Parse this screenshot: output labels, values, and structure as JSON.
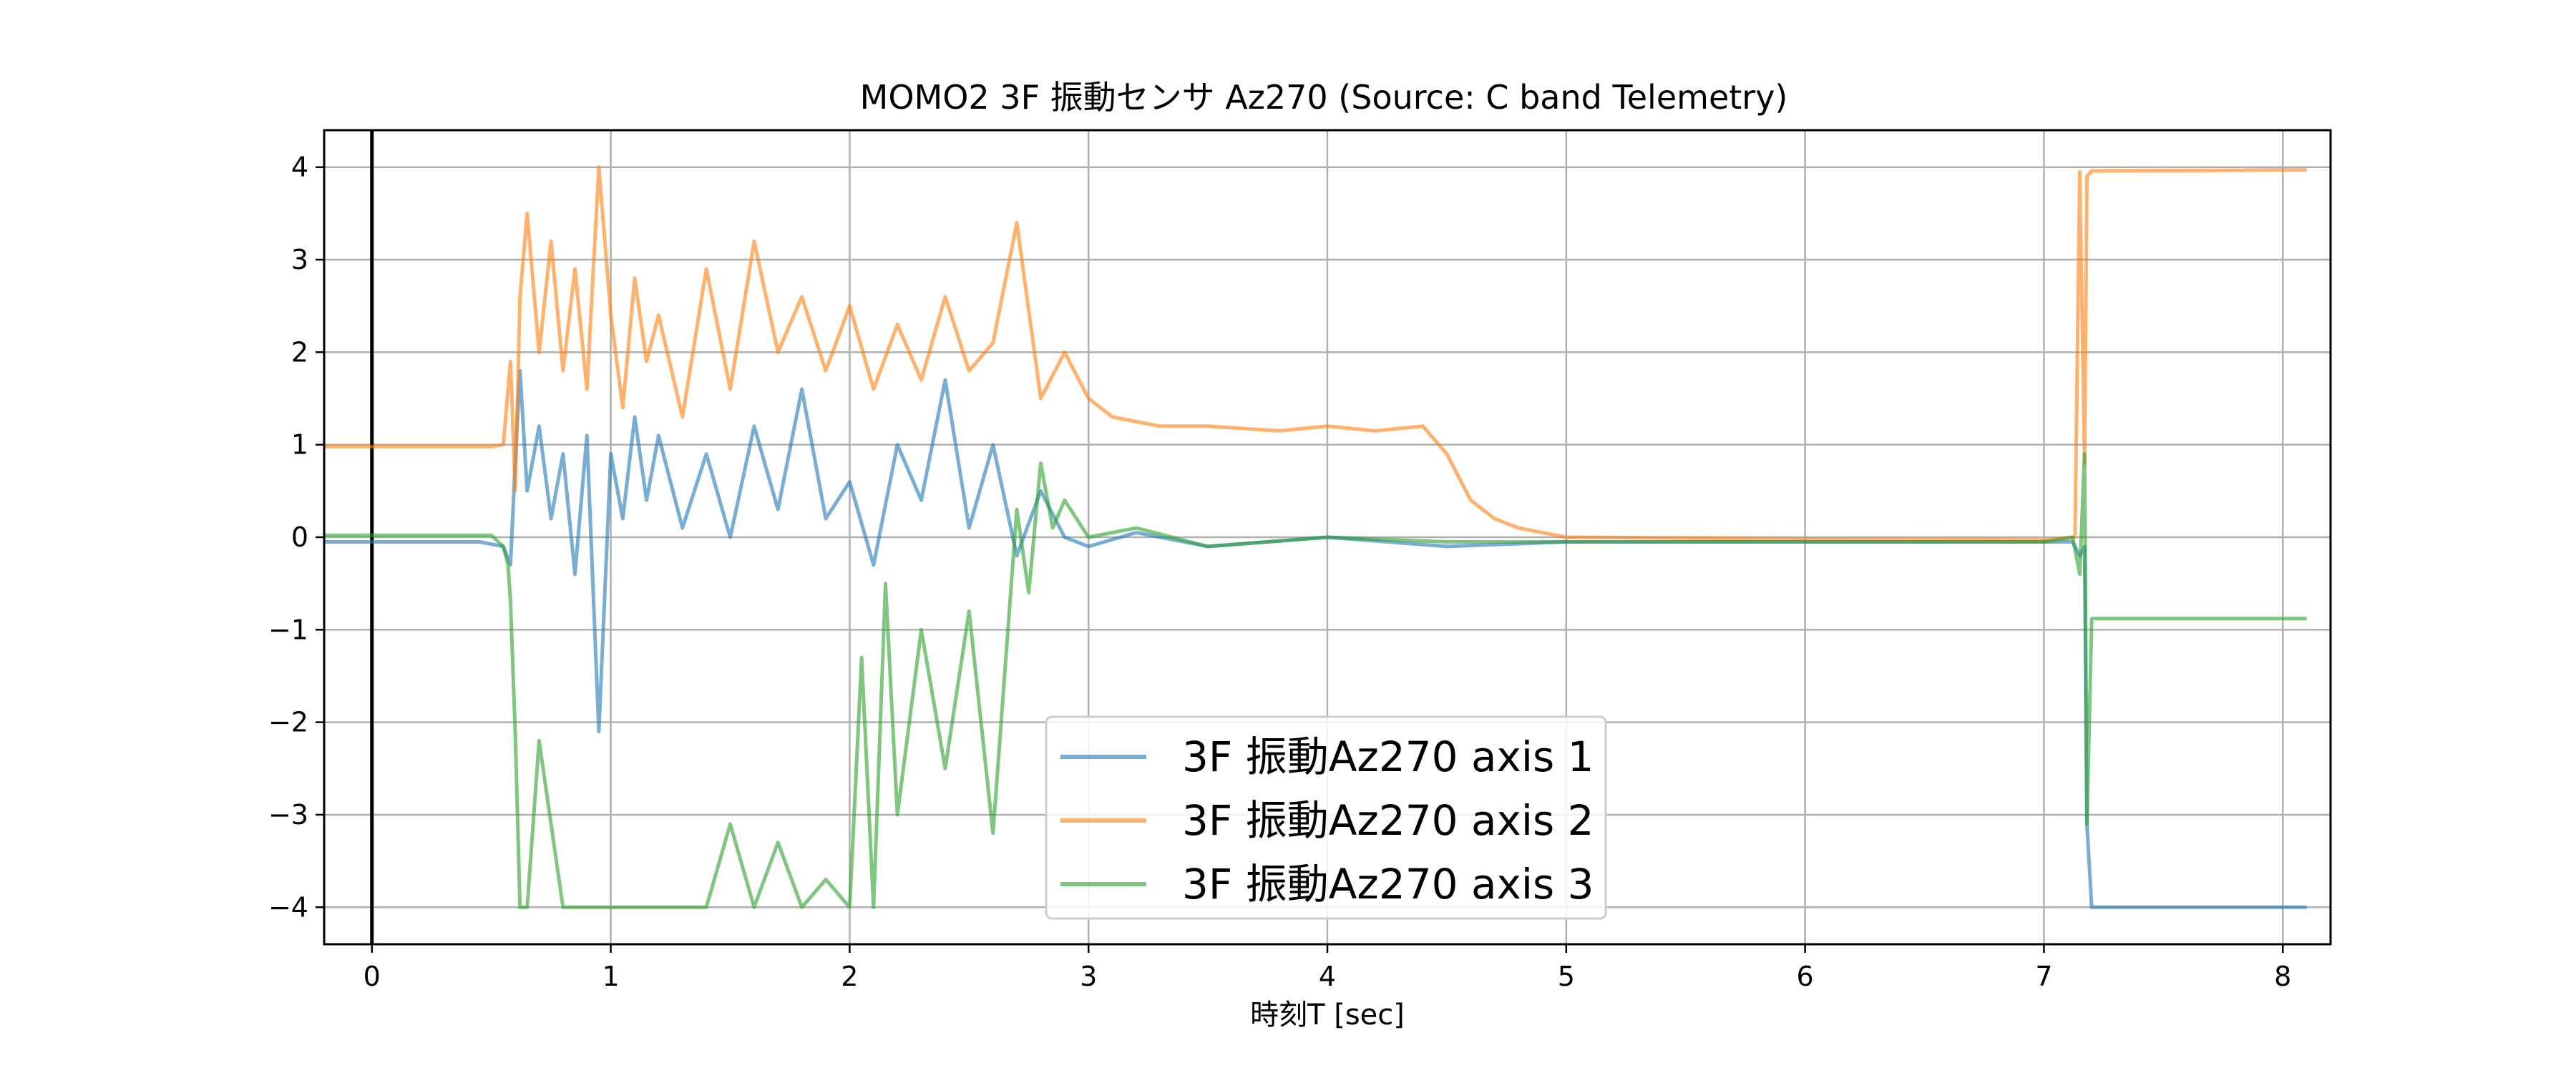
{
  "chart_data": {
    "type": "line",
    "title": "MOMO2 3F 振動センサ Az270 (Source: C band Telemetry)",
    "xlabel": "時刻T [sec]",
    "ylabel": "",
    "xlim": [
      -0.2,
      8.2
    ],
    "ylim": [
      -4.4,
      4.4
    ],
    "xticks": [
      0,
      1,
      2,
      3,
      4,
      5,
      6,
      7,
      8
    ],
    "yticks": [
      -4,
      -3,
      -2,
      -1,
      0,
      1,
      2,
      3,
      4
    ],
    "xtick_labels": [
      "0",
      "1",
      "2",
      "3",
      "4",
      "5",
      "6",
      "7",
      "8"
    ],
    "ytick_labels": [
      "−4",
      "−3",
      "−2",
      "−1",
      "0",
      "1",
      "2",
      "3",
      "4"
    ],
    "grid": true,
    "legend_position": "lower-center",
    "reference_line": {
      "x": 0,
      "color": "#000000"
    },
    "series": [
      {
        "name": "3F 振動Az270 axis 1",
        "color": "#1f77b4",
        "x": [
          -0.2,
          0.45,
          0.55,
          0.58,
          0.6,
          0.62,
          0.65,
          0.7,
          0.75,
          0.8,
          0.85,
          0.9,
          0.95,
          1.0,
          1.05,
          1.1,
          1.15,
          1.2,
          1.3,
          1.4,
          1.5,
          1.6,
          1.7,
          1.8,
          1.9,
          2.0,
          2.1,
          2.2,
          2.3,
          2.4,
          2.5,
          2.6,
          2.7,
          2.8,
          2.9,
          3.0,
          3.2,
          3.5,
          4.0,
          4.5,
          5.0,
          6.0,
          7.0,
          7.12,
          7.15,
          7.17,
          7.18,
          7.2,
          8.1
        ],
        "y": [
          -0.05,
          -0.05,
          -0.1,
          -0.3,
          0.8,
          1.8,
          0.5,
          1.2,
          0.2,
          0.9,
          -0.4,
          1.1,
          -2.1,
          0.9,
          0.2,
          1.3,
          0.4,
          1.1,
          0.1,
          0.9,
          0.0,
          1.2,
          0.3,
          1.6,
          0.2,
          0.6,
          -0.3,
          1.0,
          0.4,
          1.7,
          0.1,
          1.0,
          -0.2,
          0.5,
          0.0,
          -0.1,
          0.05,
          -0.1,
          0.0,
          -0.1,
          -0.05,
          -0.05,
          -0.05,
          -0.05,
          -0.2,
          -0.1,
          -3.1,
          -4.0,
          -4.0
        ]
      },
      {
        "name": "3F 振動Az270 axis 2",
        "color": "#ff7f0e",
        "x": [
          -0.2,
          0.5,
          0.55,
          0.58,
          0.6,
          0.62,
          0.65,
          0.7,
          0.75,
          0.8,
          0.85,
          0.9,
          0.95,
          1.0,
          1.05,
          1.1,
          1.15,
          1.2,
          1.3,
          1.4,
          1.5,
          1.6,
          1.7,
          1.8,
          1.9,
          2.0,
          2.1,
          2.2,
          2.3,
          2.4,
          2.5,
          2.6,
          2.7,
          2.8,
          2.9,
          3.0,
          3.1,
          3.3,
          3.5,
          3.8,
          4.0,
          4.2,
          4.4,
          4.5,
          4.6,
          4.7,
          4.8,
          4.9,
          5.0,
          6.0,
          7.0,
          7.13,
          7.15,
          7.17,
          7.18,
          7.2,
          8.1
        ],
        "y": [
          0.98,
          0.98,
          1.0,
          1.9,
          0.5,
          2.6,
          3.5,
          2.0,
          3.2,
          1.8,
          2.9,
          1.6,
          4.0,
          2.4,
          1.4,
          2.8,
          1.9,
          2.4,
          1.3,
          2.9,
          1.6,
          3.2,
          2.0,
          2.6,
          1.8,
          2.5,
          1.6,
          2.3,
          1.7,
          2.6,
          1.8,
          2.1,
          3.4,
          1.5,
          2.0,
          1.5,
          1.3,
          1.2,
          1.2,
          1.15,
          1.2,
          1.15,
          1.2,
          0.9,
          0.4,
          0.2,
          0.1,
          0.05,
          0.0,
          -0.02,
          -0.03,
          0.0,
          3.95,
          0.8,
          3.9,
          3.96,
          3.97
        ]
      },
      {
        "name": "3F 振動Az270 axis 3",
        "color": "#2ca02c",
        "x": [
          -0.2,
          0.5,
          0.55,
          0.57,
          0.58,
          0.6,
          0.62,
          0.65,
          0.7,
          0.8,
          0.9,
          1.0,
          1.2,
          1.4,
          1.5,
          1.6,
          1.7,
          1.8,
          1.9,
          2.0,
          2.05,
          2.1,
          2.15,
          2.2,
          2.3,
          2.4,
          2.5,
          2.6,
          2.7,
          2.75,
          2.8,
          2.85,
          2.9,
          3.0,
          3.2,
          3.5,
          4.0,
          4.5,
          5.0,
          6.0,
          7.0,
          7.12,
          7.15,
          7.17,
          7.18,
          7.2,
          8.1
        ],
        "y": [
          0.02,
          0.02,
          -0.1,
          -0.3,
          -0.7,
          -2.1,
          -4.0,
          -4.0,
          -2.2,
          -4.0,
          -4.0,
          -4.0,
          -4.0,
          -4.0,
          -3.1,
          -4.0,
          -3.3,
          -4.0,
          -3.7,
          -4.0,
          -1.3,
          -4.0,
          -0.5,
          -3.0,
          -1.0,
          -2.5,
          -0.8,
          -3.2,
          0.3,
          -0.6,
          0.8,
          0.1,
          0.4,
          0.0,
          0.1,
          -0.1,
          0.0,
          -0.05,
          -0.05,
          -0.05,
          -0.05,
          0.0,
          -0.4,
          0.9,
          -3.1,
          -0.88,
          -0.88
        ]
      }
    ]
  }
}
